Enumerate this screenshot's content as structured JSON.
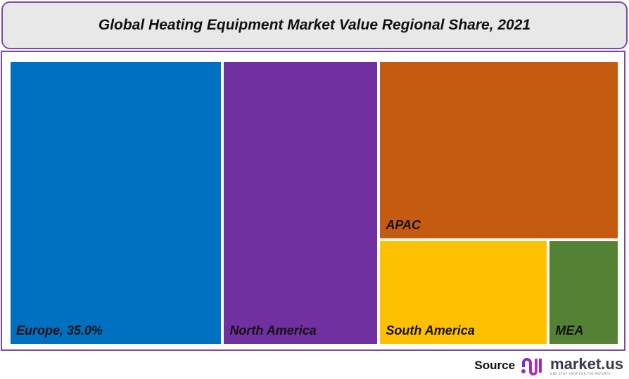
{
  "chart_data": {
    "type": "treemap",
    "title": "Global Heating Equipment Market Value Regional Share, 2021",
    "unit": "%",
    "items": [
      {
        "name": "Europe",
        "value": 35.0,
        "label": "Europe, 35.0%",
        "color": "#0070c0"
      },
      {
        "name": "North America",
        "value": 25.6,
        "label": "North America",
        "color": "#7030a0"
      },
      {
        "name": "APAC",
        "value": 24.8,
        "label": "APAC",
        "color": "#c55a11"
      },
      {
        "name": "South America",
        "value": 10.3,
        "label": "South America",
        "color": "#ffc000"
      },
      {
        "name": "MEA",
        "value": 4.3,
        "label": "MEA",
        "color": "#548235"
      }
    ]
  },
  "source": {
    "label": "Source",
    "brand": "market.us",
    "tagline": "ONE STOP SHOP FOR THE REPORTS"
  }
}
